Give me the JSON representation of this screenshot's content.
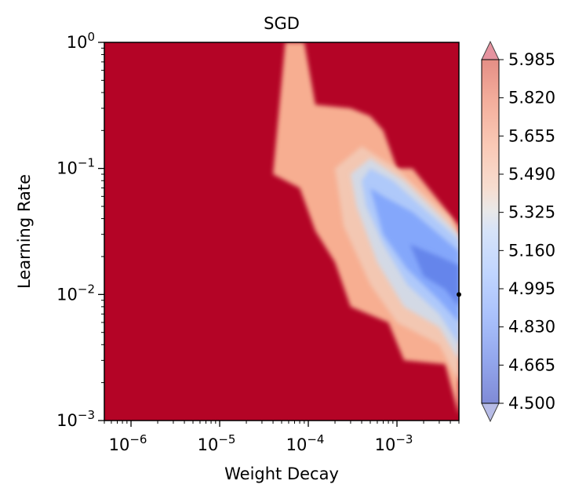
{
  "chart_data": {
    "type": "heatmap",
    "title": "SGD",
    "xlabel": "Weight Decay",
    "ylabel": "Learning Rate",
    "x_scale": "log",
    "y_scale": "log",
    "xlim": [
      5e-07,
      0.005
    ],
    "ylim": [
      0.001,
      1
    ],
    "x_ticks": [
      {
        "value": 1e-06,
        "base": "10",
        "exp": "−6"
      },
      {
        "value": 1e-05,
        "base": "10",
        "exp": "−5"
      },
      {
        "value": 0.0001,
        "base": "10",
        "exp": "−4"
      },
      {
        "value": 0.001,
        "base": "10",
        "exp": "−3"
      }
    ],
    "y_ticks": [
      {
        "value": 1,
        "base": "10",
        "exp": "0"
      },
      {
        "value": 0.1,
        "base": "10",
        "exp": "−1"
      },
      {
        "value": 0.01,
        "base": "10",
        "exp": "−2"
      },
      {
        "value": 0.001,
        "base": "10",
        "exp": "−3"
      }
    ],
    "colormap": "coolwarm",
    "background_value": 6.1,
    "background_color": "#b40426",
    "colorbar": {
      "min": 4.5,
      "max": 5.985,
      "extend": "both",
      "ticks": [
        "4.500",
        "4.665",
        "4.830",
        "4.995",
        "5.160",
        "5.325",
        "5.490",
        "5.655",
        "5.820",
        "5.985"
      ]
    },
    "regions": [
      {
        "name": "orange-plume",
        "value": 5.6,
        "points": [
          [
            4e-05,
            0.09
          ],
          [
            5.5e-05,
            1.0
          ],
          [
            9e-05,
            1.0
          ],
          [
            0.00012,
            0.32
          ],
          [
            0.0003,
            0.3
          ],
          [
            0.0005,
            0.26
          ],
          [
            0.0007,
            0.2
          ],
          [
            0.001,
            0.1
          ],
          [
            0.0015,
            0.1
          ],
          [
            0.005,
            0.035
          ],
          [
            0.005,
            0.0011
          ],
          [
            0.0035,
            0.0028
          ],
          [
            0.0012,
            0.003
          ],
          [
            0.0008,
            0.006
          ],
          [
            0.0003,
            0.008
          ],
          [
            0.0002,
            0.018
          ],
          [
            0.00012,
            0.032
          ],
          [
            8e-05,
            0.07
          ]
        ]
      },
      {
        "name": "light-band",
        "value": 5.45,
        "points": [
          [
            0.0002,
            0.1
          ],
          [
            0.0004,
            0.15
          ],
          [
            0.001,
            0.1
          ],
          [
            0.004,
            0.04
          ],
          [
            0.005,
            0.025
          ],
          [
            0.005,
            0.002
          ],
          [
            0.003,
            0.004
          ],
          [
            0.001,
            0.006
          ],
          [
            0.0005,
            0.012
          ],
          [
            0.00025,
            0.035
          ]
        ]
      },
      {
        "name": "pale-band",
        "value": 5.3,
        "points": [
          [
            0.0003,
            0.09
          ],
          [
            0.0005,
            0.12
          ],
          [
            0.0012,
            0.08
          ],
          [
            0.005,
            0.03
          ],
          [
            0.005,
            0.003
          ],
          [
            0.003,
            0.0055
          ],
          [
            0.0012,
            0.008
          ],
          [
            0.0006,
            0.018
          ],
          [
            0.00035,
            0.05
          ]
        ]
      },
      {
        "name": "light-blue",
        "value": 5.15,
        "points": [
          [
            0.0004,
            0.08
          ],
          [
            0.0005,
            0.1
          ],
          [
            0.0009,
            0.08
          ],
          [
            0.005,
            0.027
          ],
          [
            0.005,
            0.004
          ],
          [
            0.003,
            0.007
          ],
          [
            0.0013,
            0.012
          ],
          [
            0.0007,
            0.025
          ],
          [
            0.00045,
            0.05
          ]
        ]
      },
      {
        "name": "blue-valley",
        "value": 4.92,
        "points": [
          [
            0.0005,
            0.07
          ],
          [
            0.0007,
            0.06
          ],
          [
            0.0015,
            0.045
          ],
          [
            0.005,
            0.022
          ],
          [
            0.005,
            0.006
          ],
          [
            0.003,
            0.009
          ],
          [
            0.0013,
            0.016
          ],
          [
            0.0007,
            0.03
          ]
        ]
      },
      {
        "name": "deep-blue",
        "value": 4.75,
        "points": [
          [
            0.0014,
            0.025
          ],
          [
            0.003,
            0.02
          ],
          [
            0.005,
            0.017
          ],
          [
            0.005,
            0.008
          ],
          [
            0.0035,
            0.011
          ],
          [
            0.002,
            0.014
          ]
        ]
      }
    ],
    "markers": [
      {
        "x": 0.005,
        "y": 0.01
      }
    ]
  }
}
